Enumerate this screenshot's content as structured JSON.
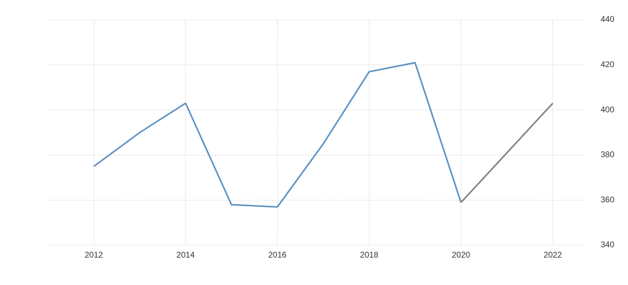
{
  "chart_data": {
    "type": "line",
    "x": [
      2012,
      2013,
      2014,
      2015,
      2016,
      2017,
      2018,
      2019,
      2020,
      2021,
      2022
    ],
    "series": [
      {
        "color": "#5b8fc0",
        "values": [
          375,
          390,
          403,
          358,
          357,
          385,
          417,
          421,
          359,
          null,
          null
        ]
      },
      {
        "color": "#7f7f7f",
        "values": [
          null,
          null,
          null,
          null,
          null,
          null,
          null,
          null,
          359,
          381,
          403
        ]
      }
    ],
    "xlim": [
      2011,
      2022.7
    ],
    "xticks": [
      2012,
      2014,
      2016,
      2018,
      2020,
      2022
    ],
    "ylim": [
      340,
      440
    ],
    "yticks": [
      340,
      360,
      380,
      400,
      420,
      440
    ],
    "grid": true
  }
}
